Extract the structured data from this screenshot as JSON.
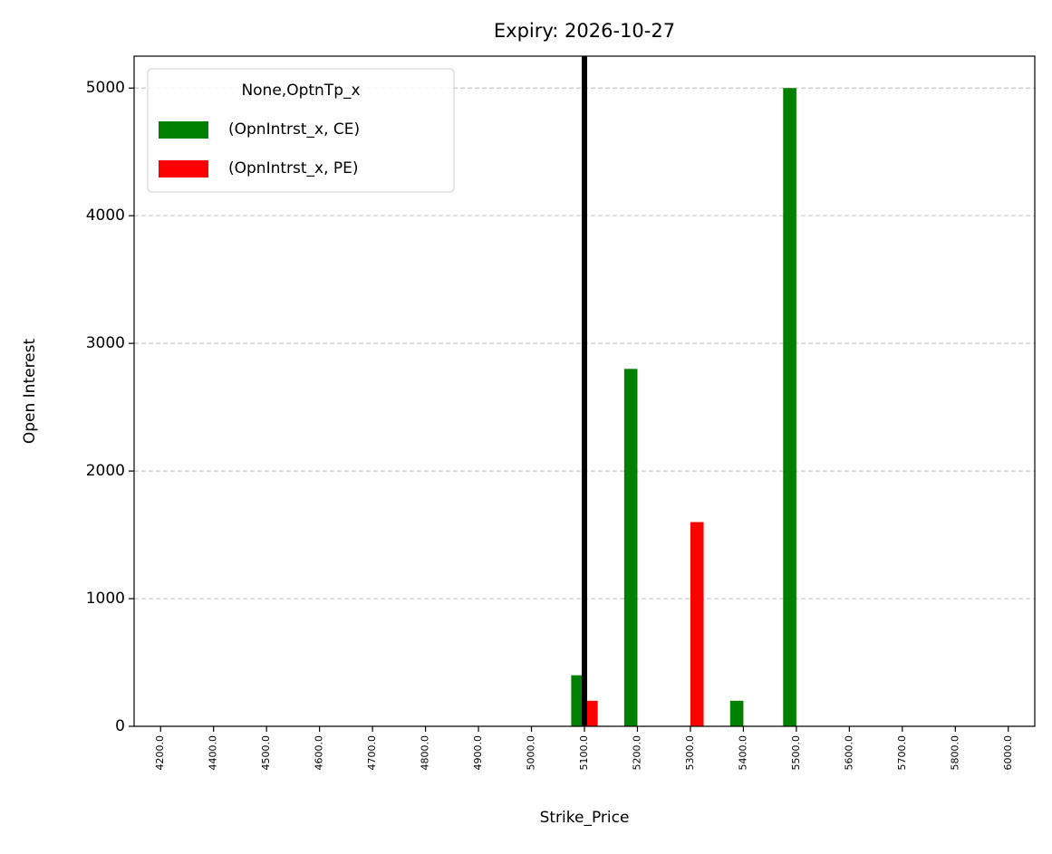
{
  "chart_data": {
    "type": "bar",
    "title": "Expiry: 2026-10-27",
    "x_label": "Strike_Price",
    "y_label": "Open Interest",
    "categories": [
      "4200.0",
      "4400.0",
      "4500.0",
      "4600.0",
      "4700.0",
      "4800.0",
      "4900.0",
      "5000.0",
      "5100.0",
      "5200.0",
      "5300.0",
      "5400.0",
      "5500.0",
      "5600.0",
      "5700.0",
      "5800.0",
      "6000.0"
    ],
    "series": [
      {
        "name": "(OpnIntrst_x, CE)",
        "color": "#008000",
        "values": [
          0,
          0,
          0,
          0,
          0,
          0,
          0,
          0,
          400,
          2800,
          0,
          200,
          5000,
          0,
          0,
          0,
          0
        ]
      },
      {
        "name": "(OpnIntrst_x, PE)",
        "color": "#ff0000",
        "values": [
          0,
          0,
          0,
          0,
          0,
          0,
          0,
          0,
          200,
          0,
          1600,
          0,
          0,
          0,
          0,
          0,
          0
        ]
      }
    ],
    "legend_title": "None,OptnTp_x",
    "legend": "upper left",
    "vline": "5100.0",
    "vline_color": "#000000",
    "ylim": [
      0,
      5250
    ],
    "yticks": [
      0,
      1000,
      2000,
      3000,
      4000,
      5000
    ],
    "grid": true
  }
}
